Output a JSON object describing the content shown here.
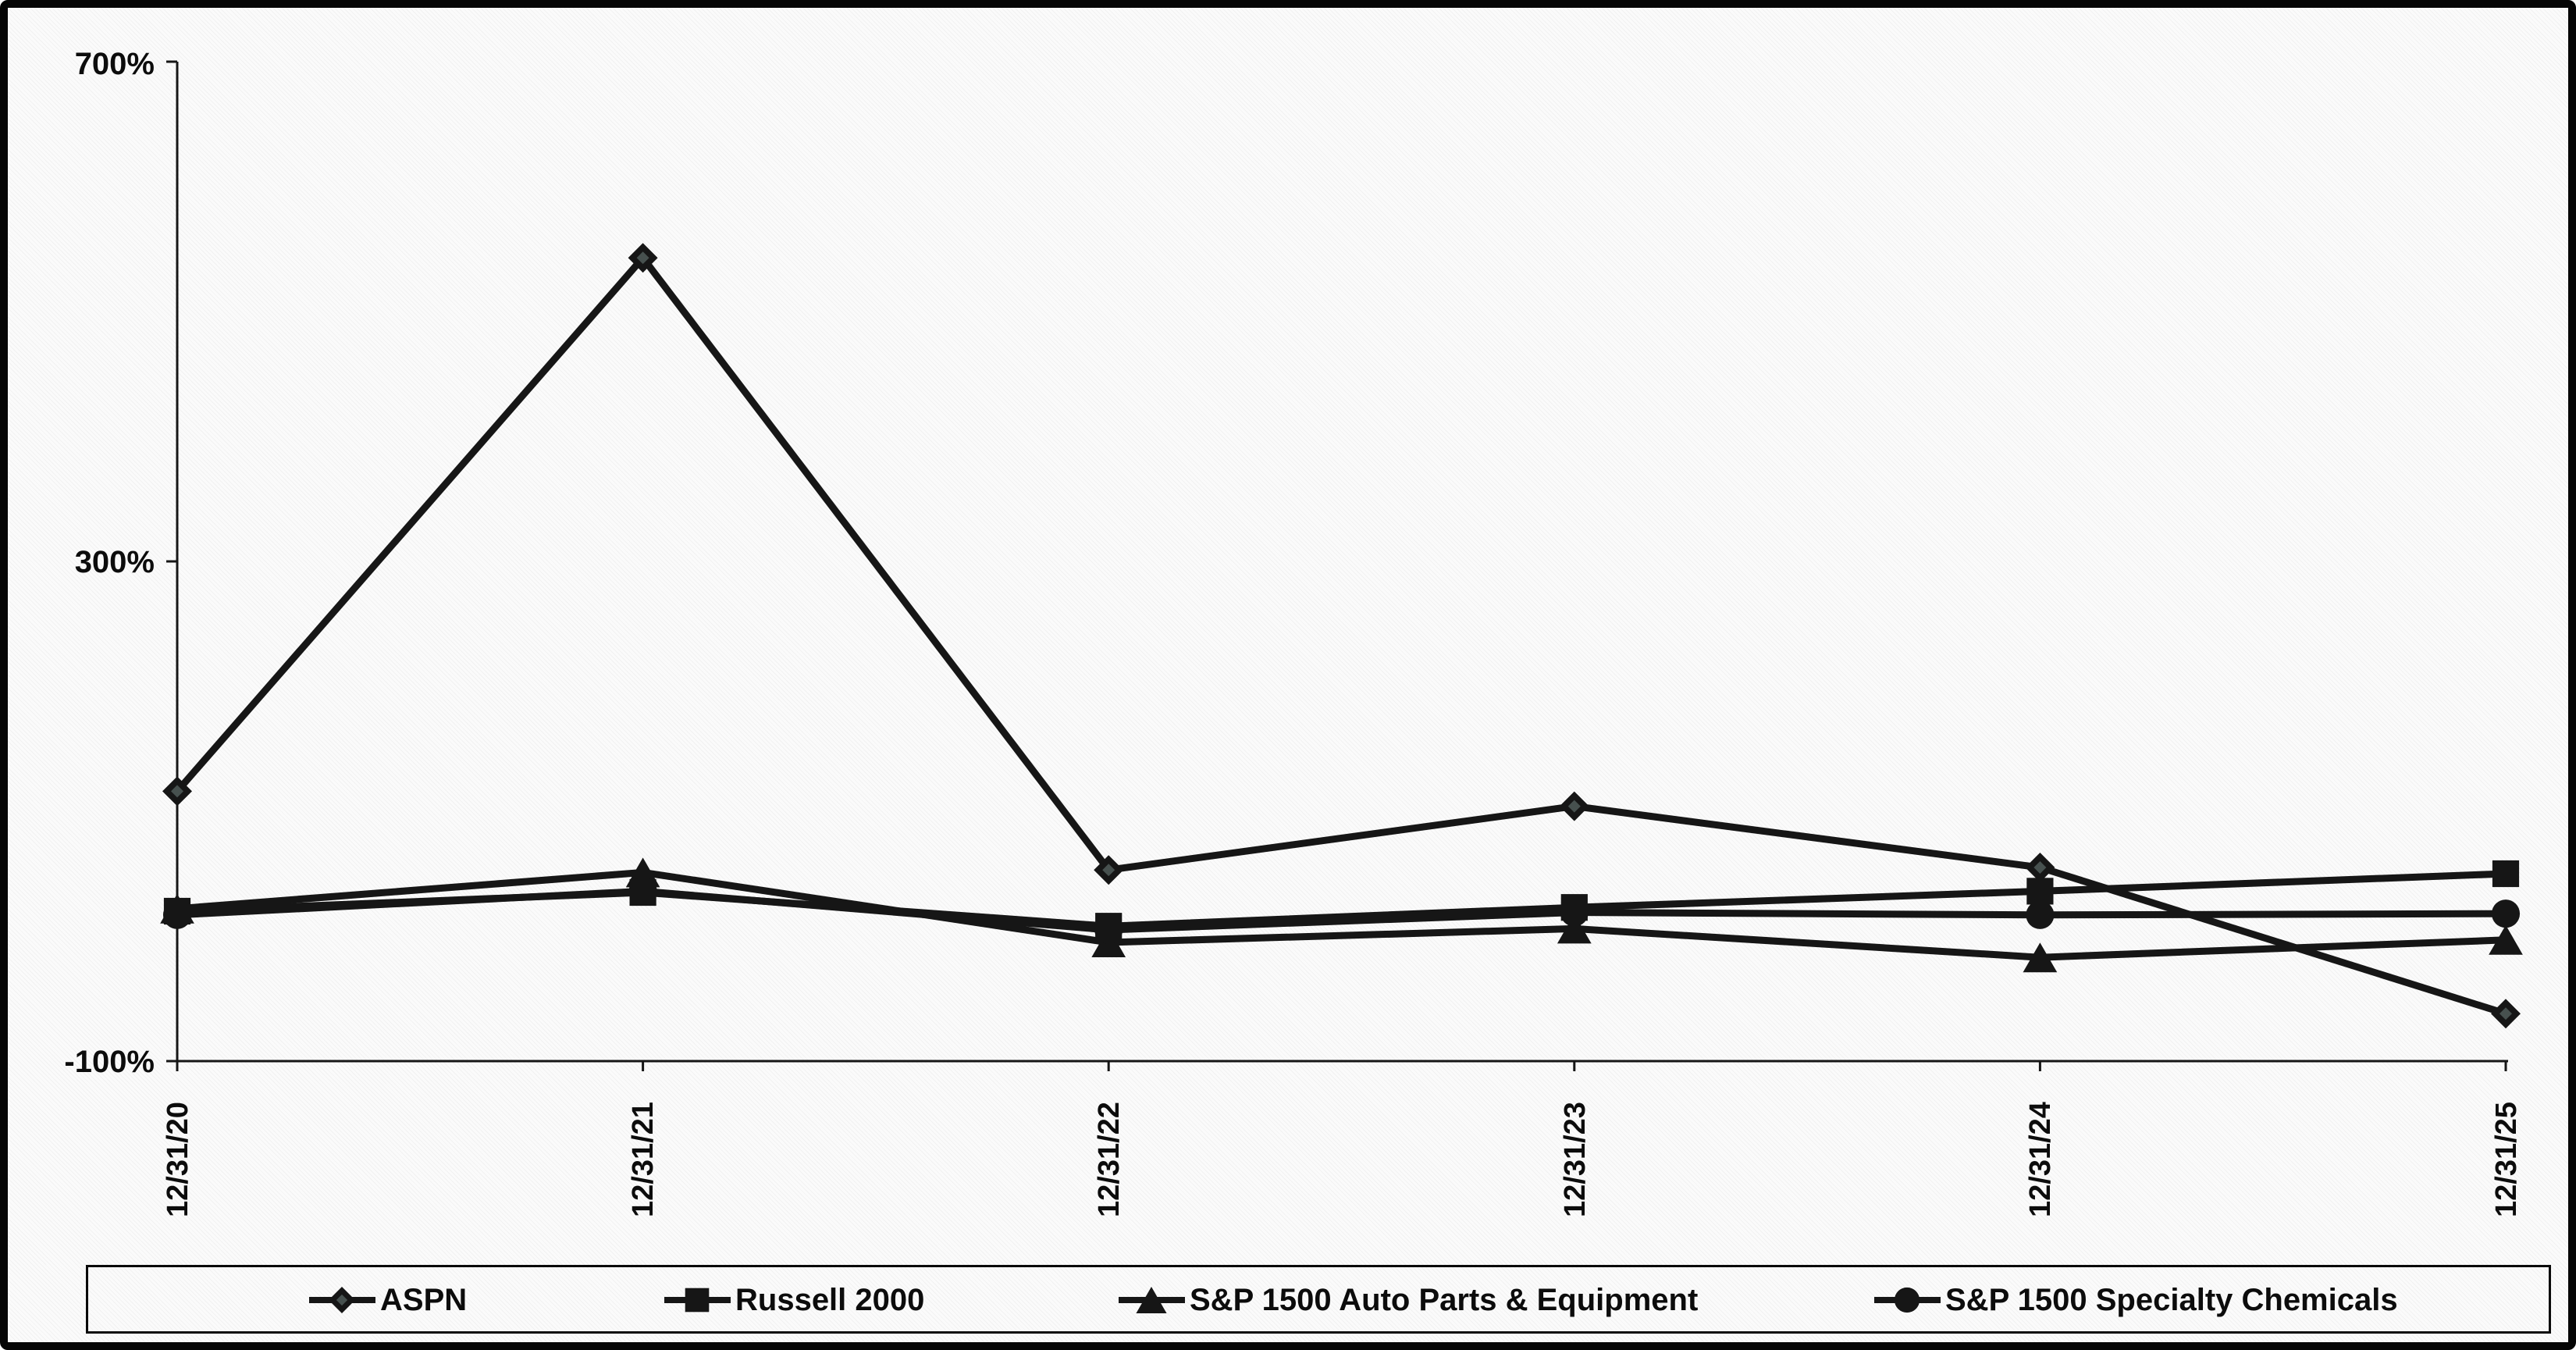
{
  "figure": {
    "background": "#fbfbfb",
    "border_color": "#050505",
    "line_color": "#161616"
  },
  "y_axis": {
    "labels": [
      "700%",
      "300%",
      "-100%"
    ],
    "tick_values": [
      700,
      300,
      -100
    ]
  },
  "x_axis": {
    "labels": [
      "12/31/20",
      "12/31/21",
      "12/31/22",
      "12/31/23",
      "12/31/24",
      "12/31/25"
    ]
  },
  "legend": {
    "items": [
      {
        "label": "ASPN",
        "marker": "diamond"
      },
      {
        "label": "Russell 2000",
        "marker": "square"
      },
      {
        "label": "S&P 1500 Auto Parts & Equipment",
        "marker": "triangle"
      },
      {
        "label": "S&P 1500 Specialty Chemicals",
        "marker": "circle"
      }
    ]
  },
  "chart_data": {
    "type": "line",
    "x": [
      "12/31/20",
      "12/31/21",
      "12/31/22",
      "12/31/23",
      "12/31/24",
      "12/31/25"
    ],
    "series": [
      {
        "name": "ASPN",
        "marker": "diamond",
        "values": [
          116,
          543,
          53,
          104,
          55,
          -62
        ]
      },
      {
        "name": "Russell 2000",
        "marker": "square",
        "values": [
          20,
          35,
          8,
          23,
          36,
          50
        ]
      },
      {
        "name": "S&P 1500 Auto Parts & Equipment",
        "marker": "triangle",
        "values": [
          22,
          51,
          -5,
          6,
          -17,
          -3
        ]
      },
      {
        "name": "S&P 1500 Specialty Chemicals",
        "marker": "circle",
        "values": [
          17,
          36,
          5,
          19,
          17,
          18
        ]
      }
    ],
    "ylabel": "",
    "xlabel": "",
    "ylim": [
      -100,
      700
    ],
    "y_ticks_shown": [
      700,
      300,
      -100
    ],
    "grid": false,
    "legend_position": "bottom",
    "series_color": "#161616"
  }
}
